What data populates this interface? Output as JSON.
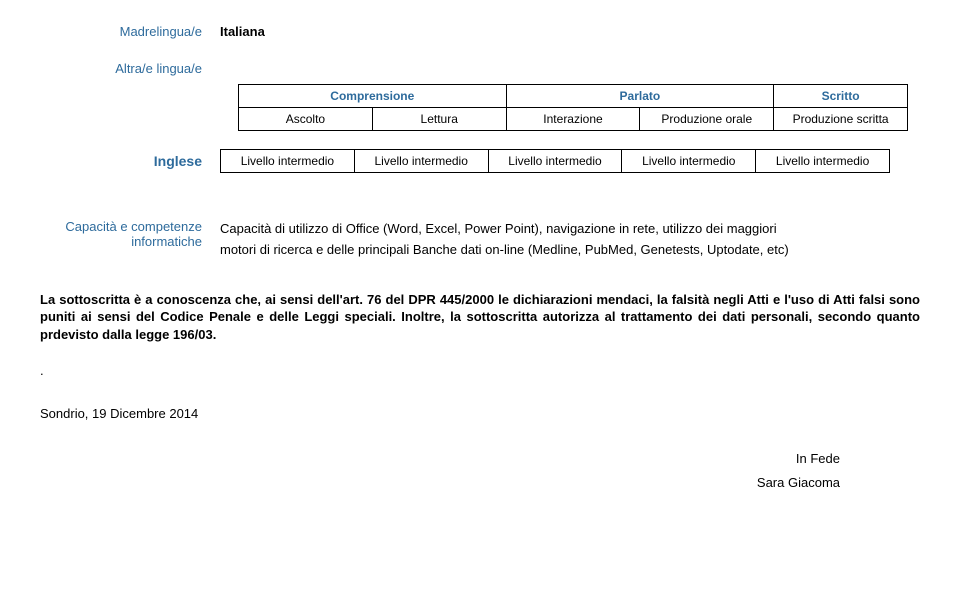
{
  "madrelingua": {
    "label": "Madrelingua/e",
    "value": "Italiana"
  },
  "altraLingua": {
    "label": "Altra/e lingua/e"
  },
  "skillsHeader": {
    "comprensione": "Comprensione",
    "parlato": "Parlato",
    "scritto": "Scritto",
    "ascolto": "Ascolto",
    "lettura": "Lettura",
    "interazione": "Interazione",
    "prodOrale": "Produzione orale",
    "prodScritta": "Produzione scritta"
  },
  "inglese": {
    "label": "Inglese",
    "levels": [
      "Livello intermedio",
      "Livello intermedio",
      "Livello intermedio",
      "Livello intermedio",
      "Livello intermedio"
    ]
  },
  "capacita": {
    "label": "Capacità e competenze informatiche",
    "text1": "Capacità di utilizzo di Office (Word, Excel, Power Point), navigazione in rete, utilizzo dei maggiori",
    "text2": "motori di ricerca e delle principali Banche dati on-line (Medline, PubMed, Genetests, Uptodate, etc)"
  },
  "declaration": {
    "p1a": "La sottoscritta è a conoscenza che, ai sensi dell'art. 76 del DPR 445/2000 le dichiarazioni mendaci, la falsità negli Atti e l'uso di Atti falsi sono puniti ai sensi del Codice Penale e delle Leggi speciali.",
    "p1b": " Inoltre, la sottoscritta autorizza al trattamento dei dati personali, secondo quanto prdevisto dalla legge 196/03."
  },
  "dot": ".",
  "date": "Sondrio, 19 Dicembre 2014",
  "sign": {
    "infede": "In Fede",
    "name": "Sara Giacoma"
  }
}
